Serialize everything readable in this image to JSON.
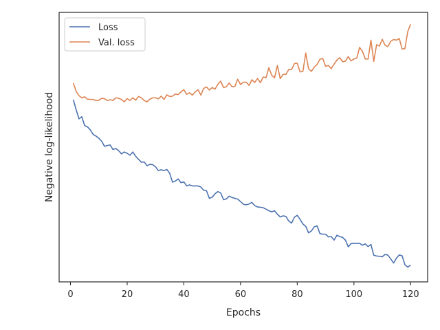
{
  "chart_data": {
    "type": "line",
    "title": "",
    "xlabel": "Epochs",
    "ylabel": "Negative log-likelihood",
    "xlim": [
      -4,
      126
    ],
    "ylim": [
      0,
      100
    ],
    "x_ticks": [
      0,
      20,
      40,
      60,
      80,
      100,
      120
    ],
    "y_ticks_shown": false,
    "grid": false,
    "legend_position": "top-left",
    "legend": [
      "Loss",
      "Val. loss"
    ],
    "colors": {
      "loss": "#4c72b0",
      "val_loss": "#dd8452"
    },
    "series": [
      {
        "name": "Loss",
        "color": "#4c72b0",
        "x": [
          1,
          2,
          3,
          4,
          5,
          6,
          7,
          8,
          9,
          10,
          11,
          12,
          13,
          14,
          15,
          16,
          17,
          18,
          19,
          20,
          21,
          22,
          23,
          24,
          25,
          26,
          27,
          28,
          29,
          30,
          31,
          32,
          33,
          34,
          35,
          36,
          37,
          38,
          39,
          40,
          41,
          42,
          43,
          44,
          45,
          46,
          47,
          48,
          49,
          50,
          51,
          52,
          53,
          54,
          55,
          56,
          57,
          58,
          59,
          60,
          61,
          62,
          63,
          64,
          65,
          66,
          67,
          68,
          69,
          70,
          71,
          72,
          73,
          74,
          75,
          76,
          77,
          78,
          79,
          80,
          81,
          82,
          83,
          84,
          85,
          86,
          87,
          88,
          89,
          90,
          91,
          92,
          93,
          94,
          95,
          96,
          97,
          98,
          99,
          100,
          101,
          102,
          103,
          104,
          105,
          106,
          107,
          108,
          109,
          110,
          111,
          112,
          113,
          114,
          115,
          116,
          117,
          118,
          119,
          120
        ],
        "values": [
          67.6,
          63.9,
          60.5,
          61.3,
          58.0,
          57.5,
          56.4,
          54.7,
          54.1,
          53.3,
          52.2,
          50.3,
          50.6,
          50.8,
          49.1,
          49.5,
          48.7,
          47.5,
          48.2,
          47.7,
          47.0,
          48.2,
          46.6,
          45.5,
          44.4,
          44.5,
          43.1,
          43.6,
          43.5,
          42.7,
          41.3,
          41.6,
          41.3,
          41.7,
          40.3,
          37.0,
          37.4,
          38.2,
          36.8,
          37.1,
          35.6,
          36.0,
          35.6,
          35.6,
          35.6,
          35.2,
          34.0,
          33.8,
          31.0,
          31.4,
          32.7,
          33.5,
          33.0,
          30.5,
          30.8,
          31.8,
          31.3,
          31.0,
          30.7,
          29.8,
          28.8,
          28.6,
          28.9,
          29.5,
          28.3,
          27.8,
          27.7,
          27.5,
          27.0,
          26.4,
          26.0,
          26.4,
          25.1,
          24.1,
          24.5,
          24.3,
          22.6,
          21.8,
          24.0,
          24.7,
          23.2,
          21.5,
          20.6,
          18.2,
          18.9,
          20.4,
          20.8,
          17.9,
          17.7,
          17.7,
          16.7,
          16.8,
          15.5,
          17.3,
          16.8,
          16.5,
          15.5,
          13.0,
          14.2,
          14.3,
          14.3,
          14.3,
          13.6,
          14.1,
          13.1,
          13.9,
          9.9,
          9.6,
          9.5,
          9.3,
          10.2,
          9.9,
          8.5,
          7.0,
          8.8,
          10.0,
          9.7,
          6.3,
          5.5,
          6.2
        ]
      },
      {
        "name": "Val. loss",
        "color": "#dd8452",
        "x": [
          1,
          2,
          3,
          4,
          5,
          6,
          7,
          8,
          9,
          10,
          11,
          12,
          13,
          14,
          15,
          16,
          17,
          18,
          19,
          20,
          21,
          22,
          23,
          24,
          25,
          26,
          27,
          28,
          29,
          30,
          31,
          32,
          33,
          34,
          35,
          36,
          37,
          38,
          39,
          40,
          41,
          42,
          43,
          44,
          45,
          46,
          47,
          48,
          49,
          50,
          51,
          52,
          53,
          54,
          55,
          56,
          57,
          58,
          59,
          60,
          61,
          62,
          63,
          64,
          65,
          66,
          67,
          68,
          69,
          70,
          71,
          72,
          73,
          74,
          75,
          76,
          77,
          78,
          79,
          80,
          81,
          82,
          83,
          84,
          85,
          86,
          87,
          88,
          89,
          90,
          91,
          92,
          93,
          94,
          95,
          96,
          97,
          98,
          99,
          100,
          101,
          102,
          103,
          104,
          105,
          106,
          107,
          108,
          109,
          110,
          111,
          112,
          113,
          114,
          115,
          116,
          117,
          118,
          119,
          120
        ],
        "values": [
          73.8,
          70.7,
          69.1,
          68.3,
          68.7,
          67.8,
          67.7,
          67.7,
          67.3,
          67.4,
          68.1,
          68.0,
          67.3,
          67.6,
          67.3,
          68.3,
          68.1,
          67.7,
          66.8,
          68.0,
          67.3,
          68.3,
          67.4,
          68.8,
          68.3,
          67.3,
          66.8,
          67.8,
          68.3,
          68.3,
          67.9,
          68.9,
          67.7,
          69.4,
          68.8,
          68.9,
          69.7,
          69.5,
          70.5,
          71.3,
          69.6,
          70.2,
          69.3,
          70.5,
          71.3,
          69.3,
          71.8,
          72.3,
          71.2,
          72.1,
          71.5,
          73.3,
          74.5,
          72.1,
          72.4,
          73.8,
          72.4,
          72.5,
          75.2,
          73.2,
          74.1,
          74.1,
          72.9,
          75.0,
          74.0,
          75.5,
          73.9,
          76.0,
          75.8,
          79.5,
          76.7,
          75.7,
          80.3,
          75.4,
          77.0,
          77.0,
          78.8,
          78.8,
          81.0,
          81.1,
          77.9,
          78.1,
          84.9,
          79.1,
          78.1,
          79.7,
          80.7,
          82.6,
          82.9,
          80.0,
          80.3,
          79.1,
          80.8,
          82.3,
          83.2,
          81.7,
          81.9,
          83.6,
          82.0,
          82.7,
          83.0,
          87.0,
          85.6,
          82.7,
          82.7,
          89.7,
          81.8,
          88.0,
          87.5,
          90.0,
          87.8,
          87.3,
          89.3,
          89.9,
          89.7,
          90.3,
          86.4,
          86.6,
          92.9,
          95.6
        ]
      }
    ]
  }
}
